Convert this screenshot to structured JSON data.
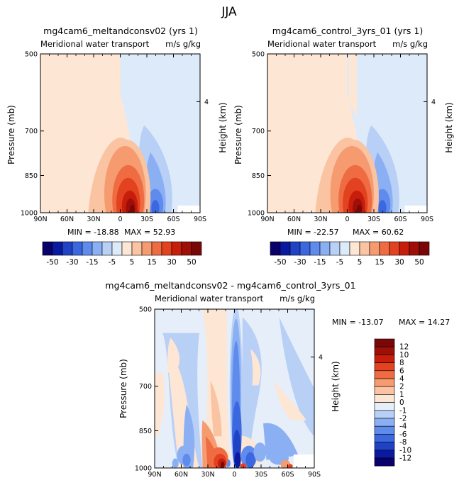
{
  "figure": {
    "title": "JJA"
  },
  "colors": {
    "main_scale": [
      "#08006b",
      "#0a1aa0",
      "#1f43c4",
      "#3b68df",
      "#5f8cec",
      "#8aaff2",
      "#b8cff6",
      "#ddeaf9",
      "#fde6d4",
      "#fac3a2",
      "#f69a70",
      "#ef6c43",
      "#e24220",
      "#c71d0b",
      "#9e0f07",
      "#7a0707"
    ],
    "diff_scale": [
      "#08006b",
      "#0a1aa0",
      "#1f43c4",
      "#3b68df",
      "#5f8cec",
      "#8aaff2",
      "#b8cff6",
      "#e6eefa",
      "#fde6d4",
      "#fac3a2",
      "#f69a70",
      "#ef6c43",
      "#e24220",
      "#c71d0b",
      "#9e0f07",
      "#7a0707"
    ],
    "missing": "#ffffff"
  },
  "panels": [
    {
      "id": "panel-1",
      "title": "mg4cam6_meltandconsv02 (yrs 1)",
      "subtitle": "Meridional water transport",
      "units": "m/s g/kg",
      "ylabel": "Pressure (mb)",
      "ylabel_right": "Height (km)",
      "min_label": "MIN = -18.88",
      "max_label": "MAX = 52.93"
    },
    {
      "id": "panel-2",
      "title": "mg4cam6_control_3yrs_01 (yrs 1)",
      "subtitle": "Meridional water transport",
      "units": "m/s g/kg",
      "ylabel": "Pressure (mb)",
      "ylabel_right": "Height (km)",
      "min_label": "MIN = -22.57",
      "max_label": "MAX = 60.62"
    },
    {
      "id": "panel-diff",
      "title": "mg4cam6_meltandconsv02 - mg4cam6_control_3yrs_01",
      "subtitle": "Meridional water transport",
      "units": "m/s g/kg",
      "ylabel": "Pressure (mb)",
      "ylabel_right": "Height (km)",
      "min_label": "MIN = -13.07",
      "max_label": "MAX = 14.27"
    }
  ],
  "chart_data": [
    {
      "type": "contour",
      "title": "mg4cam6_meltandconsv02 (yrs 1)",
      "subtitle": "Meridional water transport (m/s g/kg)",
      "x_ticks": [
        "90N",
        "60N",
        "30N",
        "0",
        "30S",
        "60S",
        "90S"
      ],
      "x_range": [
        90,
        -90
      ],
      "y_ticks": [
        "500",
        "700",
        "850",
        "1000"
      ],
      "y_range_mb": [
        500,
        1000
      ],
      "right_ticks_km": [
        "4"
      ],
      "min": -18.88,
      "max": 52.93,
      "features": [
        {
          "name": "positive maximum",
          "lat": -8,
          "pressure_mb": 975,
          "value": 52.93
        },
        {
          "name": "negative minimum",
          "lat": -38,
          "pressure_mb": 960,
          "value": -18.88
        }
      ]
    },
    {
      "type": "contour",
      "title": "mg4cam6_control_3yrs_01 (yrs 1)",
      "subtitle": "Meridional water transport (m/s g/kg)",
      "x_ticks": [
        "90N",
        "60N",
        "30N",
        "0",
        "30S",
        "60S",
        "90S"
      ],
      "x_range": [
        90,
        -90
      ],
      "y_ticks": [
        "500",
        "700",
        "850",
        "1000"
      ],
      "y_range_mb": [
        500,
        1000
      ],
      "right_ticks_km": [
        "4"
      ],
      "min": -22.57,
      "max": 60.62,
      "features": [
        {
          "name": "positive maximum",
          "lat": -10,
          "pressure_mb": 975,
          "value": 60.62
        },
        {
          "name": "negative minimum",
          "lat": -45,
          "pressure_mb": 960,
          "value": -22.57
        }
      ]
    },
    {
      "type": "contour",
      "title": "mg4cam6_meltandconsv02 - mg4cam6_control_3yrs_01",
      "subtitle": "Meridional water transport (m/s g/kg)",
      "x_ticks": [
        "90N",
        "60N",
        "30N",
        "0",
        "30S",
        "60S",
        "90S"
      ],
      "x_range": [
        90,
        -90
      ],
      "y_ticks": [
        "500",
        "700",
        "850",
        "1000"
      ],
      "y_range_mb": [
        500,
        1000
      ],
      "right_ticks_km": [
        "4"
      ],
      "min": -13.07,
      "max": 14.27,
      "features": [
        {
          "name": "positive maximum",
          "lat": 12,
          "pressure_mb": 985,
          "value": 14.27
        },
        {
          "name": "negative minimum",
          "lat": -5,
          "pressure_mb": 975,
          "value": -13.07
        }
      ]
    }
  ],
  "colorbars": {
    "main": {
      "orientation": "horizontal",
      "labels": [
        "-50",
        "-30",
        "-15",
        "-5",
        "5",
        "15",
        "30",
        "50"
      ]
    },
    "diff": {
      "orientation": "vertical",
      "labels": [
        "12",
        "10",
        "8",
        "6",
        "4",
        "2",
        "1",
        "0",
        "-1",
        "-2",
        "-4",
        "-6",
        "-8",
        "-10",
        "-12"
      ]
    }
  }
}
